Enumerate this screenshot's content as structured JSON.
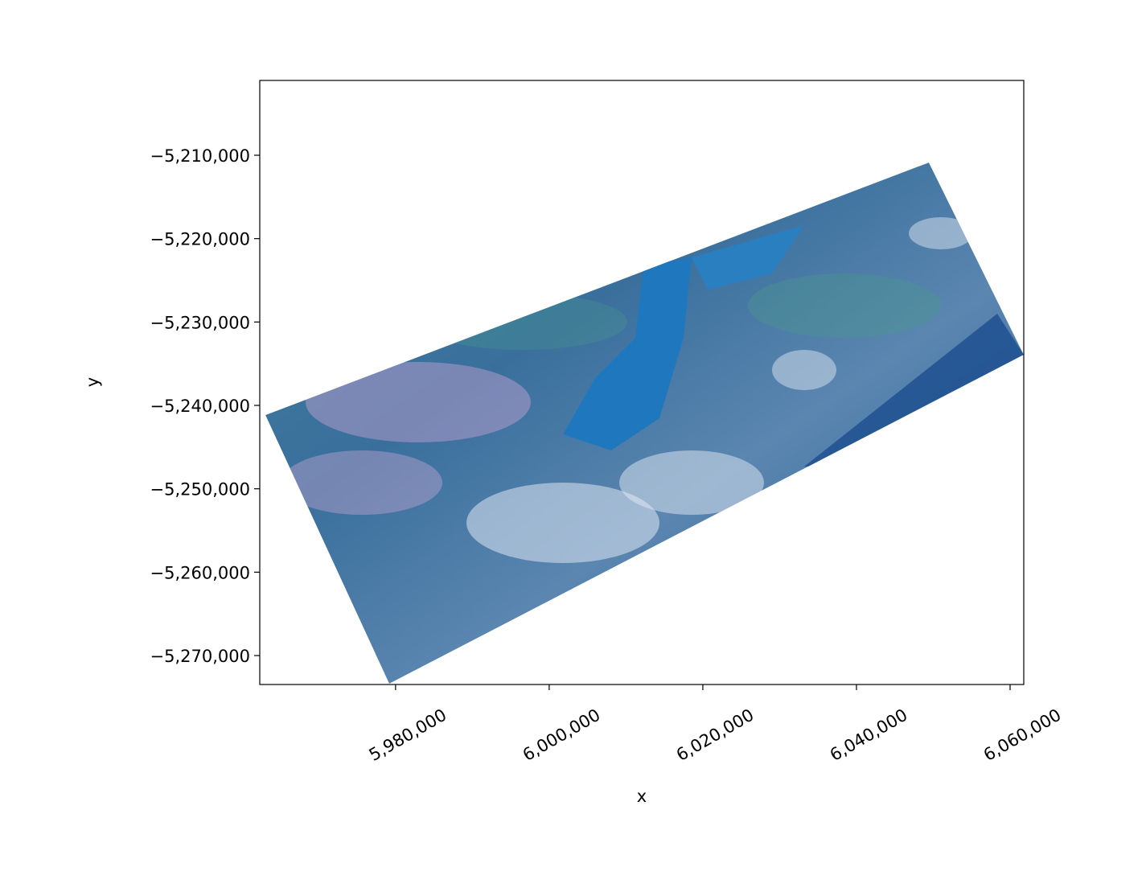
{
  "chart_data": {
    "type": "image",
    "x_label": "x",
    "y_label": "y",
    "xlim": [
      5962320,
      6061780
    ],
    "ylim": [
      -5273470,
      -5201030
    ],
    "xticks": [
      {
        "value": 5980000,
        "label": "5,980,000"
      },
      {
        "value": 6000000,
        "label": "6,000,000"
      },
      {
        "value": 6020000,
        "label": "6,020,000"
      },
      {
        "value": 6040000,
        "label": "6,040,000"
      },
      {
        "value": 6060000,
        "label": "6,060,000"
      }
    ],
    "yticks": [
      {
        "value": -5210000,
        "label": "−5,210,000"
      },
      {
        "value": -5220000,
        "label": "−5,220,000"
      },
      {
        "value": -5230000,
        "label": "−5,230,000"
      },
      {
        "value": -5240000,
        "label": "−5,240,000"
      },
      {
        "value": -5250000,
        "label": "−5,250,000"
      },
      {
        "value": -5260000,
        "label": "−5,260,000"
      },
      {
        "value": -5270000,
        "label": "−5,270,000"
      }
    ]
  }
}
